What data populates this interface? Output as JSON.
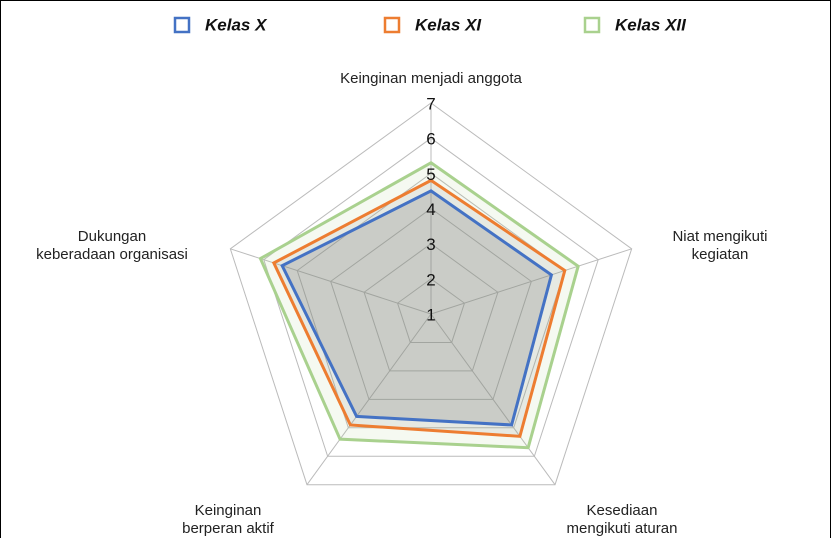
{
  "chart_data": {
    "type": "radar",
    "categories": [
      "Keinginan menjadi anggota",
      "Niat mengikuti\nkegiatan",
      "Kesediaan\nmengikuti aturan",
      "Keinginan\nberperan aktif",
      "Dukungan\nkeberadaan organisasi"
    ],
    "series": [
      {
        "name": "Kelas X",
        "color": "#4472c4",
        "values": [
          4.5,
          4.6,
          4.9,
          4.6,
          5.45
        ]
      },
      {
        "name": "Kelas XI",
        "color": "#ed7d31",
        "values": [
          4.8,
          5.0,
          5.3,
          4.9,
          5.7
        ]
      },
      {
        "name": "Kelas XII",
        "color": "#a9d18e",
        "values": [
          5.3,
          5.4,
          5.7,
          5.4,
          6.1
        ]
      }
    ],
    "ylim": [
      1,
      7
    ],
    "yticks": [
      1,
      2,
      3,
      4,
      5,
      6,
      7
    ],
    "grid": true,
    "legend": "top"
  }
}
